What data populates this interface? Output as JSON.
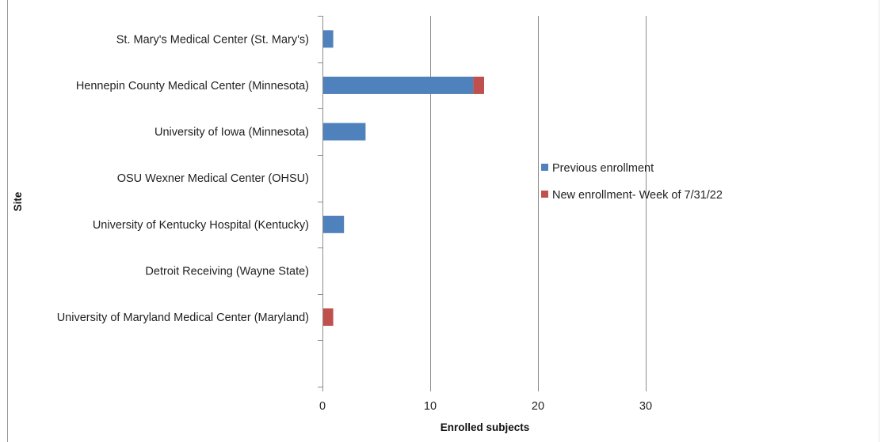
{
  "chart_data": {
    "type": "bar",
    "orientation": "horizontal",
    "stacked": true,
    "categories": [
      "St. Mary's Medical Center (St. Mary's)",
      "Hennepin County Medical Center (Minnesota)",
      "University of Iowa  (Minnesota)",
      "OSU Wexner Medical Center (OHSU)",
      "University of Kentucky Hospital (Kentucky)",
      "Detroit Receiving (Wayne State)",
      "University of Maryland Medical Center (Maryland)",
      ""
    ],
    "series": [
      {
        "name": "Previous enrollment",
        "color": "#4f81bd",
        "values": [
          1,
          14,
          4,
          0,
          2,
          0,
          0,
          0
        ]
      },
      {
        "name": "New enrollment- Week of 7/31/22",
        "color": "#c0504d",
        "values": [
          0,
          1,
          0,
          0,
          0,
          0,
          1,
          0
        ]
      }
    ],
    "title": "",
    "xlabel": "Enrolled subjects",
    "ylabel": "Site",
    "xlim": [
      0,
      30
    ],
    "xticks": [
      0,
      10,
      20,
      30
    ],
    "xtick_labels": [
      "0",
      "10",
      "20",
      "30"
    ],
    "grid": "vertical major gridlines",
    "legend_position": "right"
  }
}
